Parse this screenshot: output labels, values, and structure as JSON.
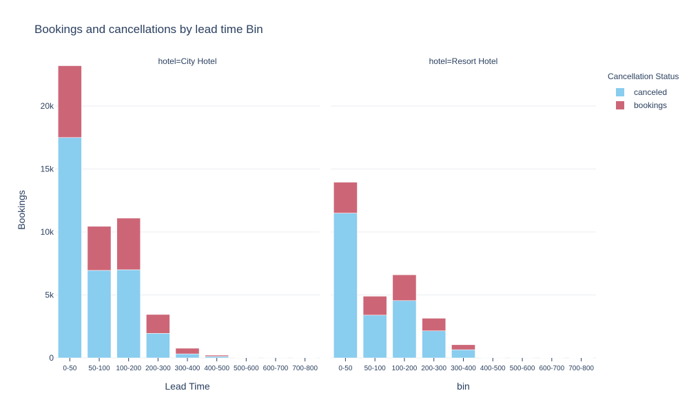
{
  "title": "Bookings and cancellations by lead time Bin",
  "legend": {
    "title": "Cancellation Status",
    "items": [
      {
        "label": "canceled",
        "color": "#89cdef"
      },
      {
        "label": "bookings",
        "color": "#cc6677"
      }
    ]
  },
  "chart_data": {
    "type": "bar",
    "stacked": true,
    "ylabel": "Bookings",
    "ylim": [
      0,
      23500
    ],
    "yticks": [
      0,
      5000,
      10000,
      15000,
      20000
    ],
    "ytick_labels": [
      "0",
      "5k",
      "10k",
      "15k",
      "20k"
    ],
    "grid": true,
    "legend_position": "top-right",
    "categories": [
      "0-50",
      "50-100",
      "100-200",
      "200-300",
      "300-400",
      "400-500",
      "500-600",
      "600-700",
      "700-800"
    ],
    "panels": [
      {
        "facet_label": "hotel=City Hotel",
        "xlabel": "Lead Time",
        "series": [
          {
            "name": "canceled",
            "values": [
              17500,
              6950,
              7000,
              1950,
              320,
              120,
              30,
              15,
              10
            ]
          },
          {
            "name": "bookings",
            "values": [
              5700,
              3500,
              4100,
              1500,
              450,
              100,
              30,
              20,
              15
            ]
          }
        ]
      },
      {
        "facet_label": "hotel=Resort Hotel",
        "xlabel": "bin",
        "series": [
          {
            "name": "canceled",
            "values": [
              11500,
              3400,
              4550,
              2150,
              650,
              20,
              15,
              10,
              5
            ]
          },
          {
            "name": "bookings",
            "values": [
              2450,
              1500,
              2050,
              1000,
              400,
              20,
              20,
              15,
              10
            ]
          }
        ]
      }
    ]
  }
}
